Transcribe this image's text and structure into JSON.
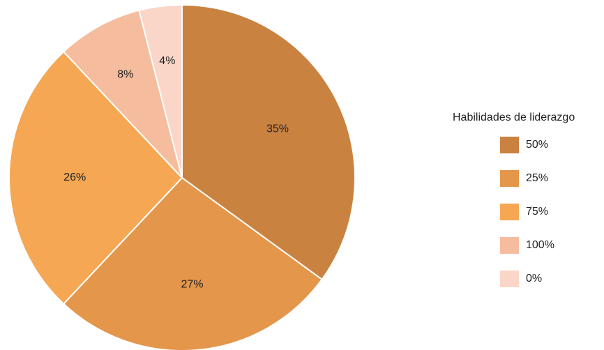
{
  "chart_data": {
    "type": "pie",
    "legend_title": "Habilidades de liderazgo",
    "legend_position": "right",
    "slices": [
      {
        "name": "50%",
        "value": 35,
        "label": "35%",
        "color": "#C98240"
      },
      {
        "name": "25%",
        "value": 27,
        "label": "27%",
        "color": "#E4964B"
      },
      {
        "name": "75%",
        "value": 26,
        "label": "26%",
        "color": "#F5A754"
      },
      {
        "name": "100%",
        "value": 8,
        "label": "8%",
        "color": "#F5BC9E"
      },
      {
        "name": "0%",
        "value": 4,
        "label": "4%",
        "color": "#F9D6C8"
      }
    ],
    "start_angle_deg": 0,
    "direction": "clockwise"
  }
}
